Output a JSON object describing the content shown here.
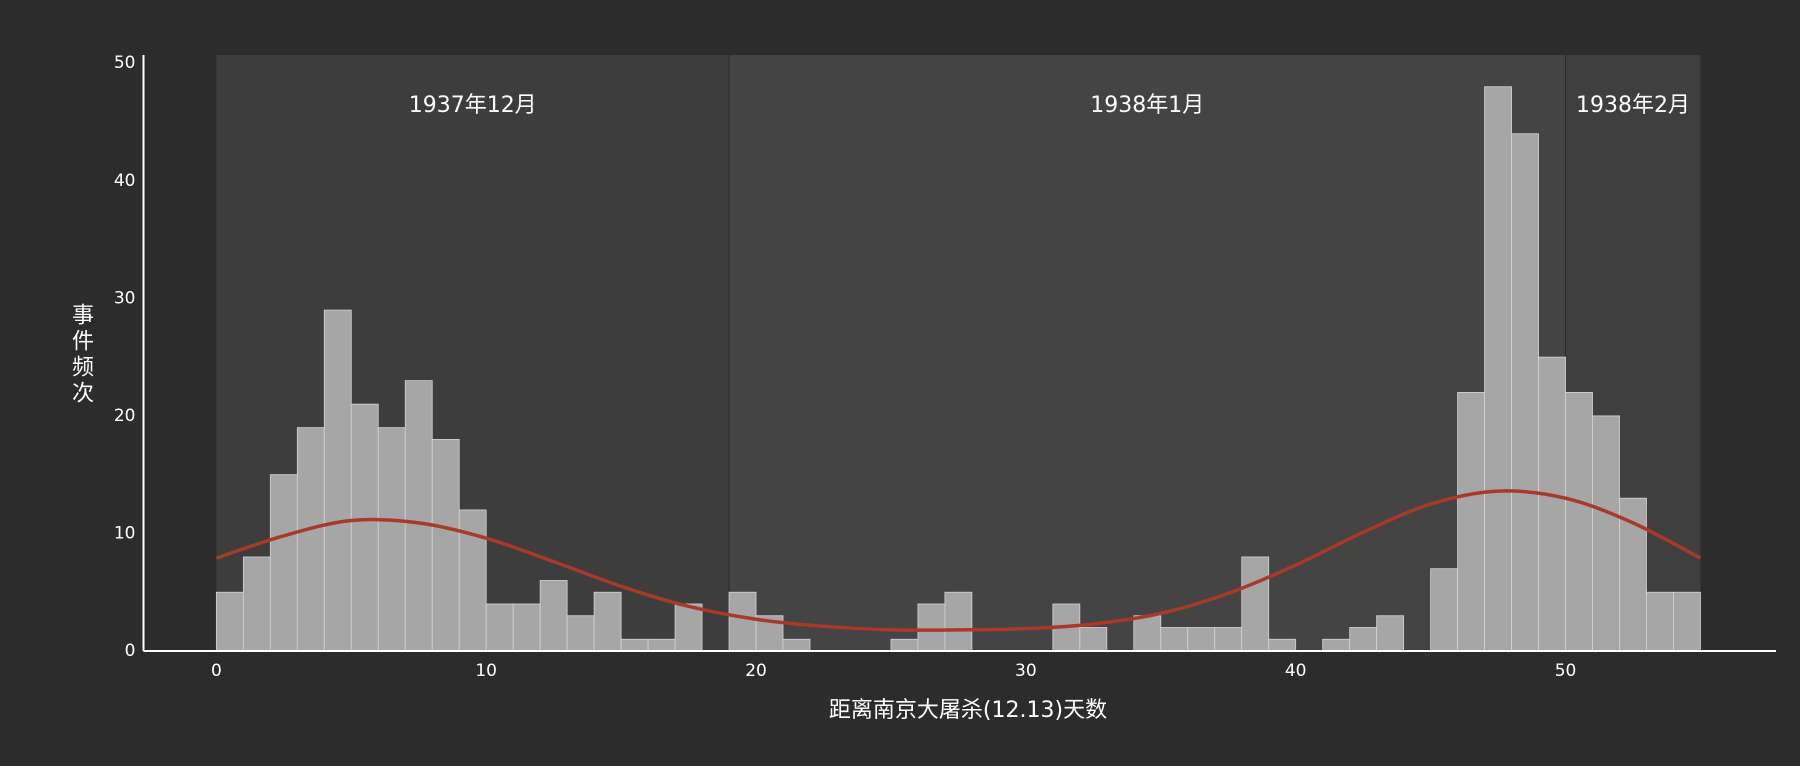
{
  "chart_data": {
    "type": "histogram",
    "xlabel": "距离南京大屠杀(12.13)天数",
    "ylabel": "事件频次",
    "bins": [
      0,
      1,
      2,
      3,
      4,
      5,
      6,
      7,
      8,
      9,
      10,
      11,
      12,
      13,
      14,
      15,
      16,
      17,
      18,
      19,
      20,
      21,
      22,
      23,
      24,
      25,
      26,
      27,
      28,
      29,
      30,
      31,
      32,
      33,
      34,
      35,
      36,
      37,
      38,
      39,
      40,
      41,
      42,
      43,
      44,
      45,
      46,
      47,
      48,
      49,
      50,
      51,
      52,
      53,
      54,
      55
    ],
    "counts": [
      5,
      8,
      15,
      19,
      29,
      21,
      19,
      23,
      18,
      12,
      4,
      4,
      6,
      3,
      5,
      1,
      1,
      4,
      0,
      5,
      3,
      1,
      0,
      0,
      0,
      1,
      4,
      5,
      0,
      0,
      0,
      4,
      2,
      0,
      3,
      2,
      2,
      2,
      8,
      1,
      0,
      1,
      2,
      3,
      0,
      7,
      22,
      48,
      44,
      25,
      22,
      20,
      13,
      5,
      5
    ],
    "color": "#a6a6a6",
    "curve": {
      "color": "#a83a2a",
      "x": [
        0,
        2.5,
        5,
        7.5,
        10,
        12.5,
        15,
        17.5,
        20,
        22.5,
        25,
        27.5,
        30,
        32.5,
        35,
        37.5,
        40,
        42.5,
        45,
        47.5,
        50,
        52.5,
        55
      ],
      "y": [
        7.9,
        9.8,
        11.1,
        10.9,
        9.6,
        7.6,
        5.5,
        3.8,
        2.7,
        2.1,
        1.8,
        1.8,
        1.9,
        2.3,
        3.2,
        4.9,
        7.3,
        10.1,
        12.5,
        13.6,
        13.0,
        10.9,
        7.9
      ]
    },
    "months": [
      {
        "label": "1937年12月",
        "start": 0,
        "end": 19,
        "color": "#3c3d3c"
      },
      {
        "label": "1938年1月",
        "start": 19,
        "end": 50,
        "color": "#444444"
      },
      {
        "label": "1938年2月",
        "start": 50,
        "end": 55,
        "color": "#3f3f3f"
      }
    ],
    "xlim": [
      -2.7,
      57.8
    ],
    "ylim": [
      0,
      50.7
    ],
    "xticks": [
      0,
      10,
      20,
      30,
      40,
      50
    ],
    "yticks": [
      0,
      10,
      20,
      30,
      40,
      50
    ]
  }
}
